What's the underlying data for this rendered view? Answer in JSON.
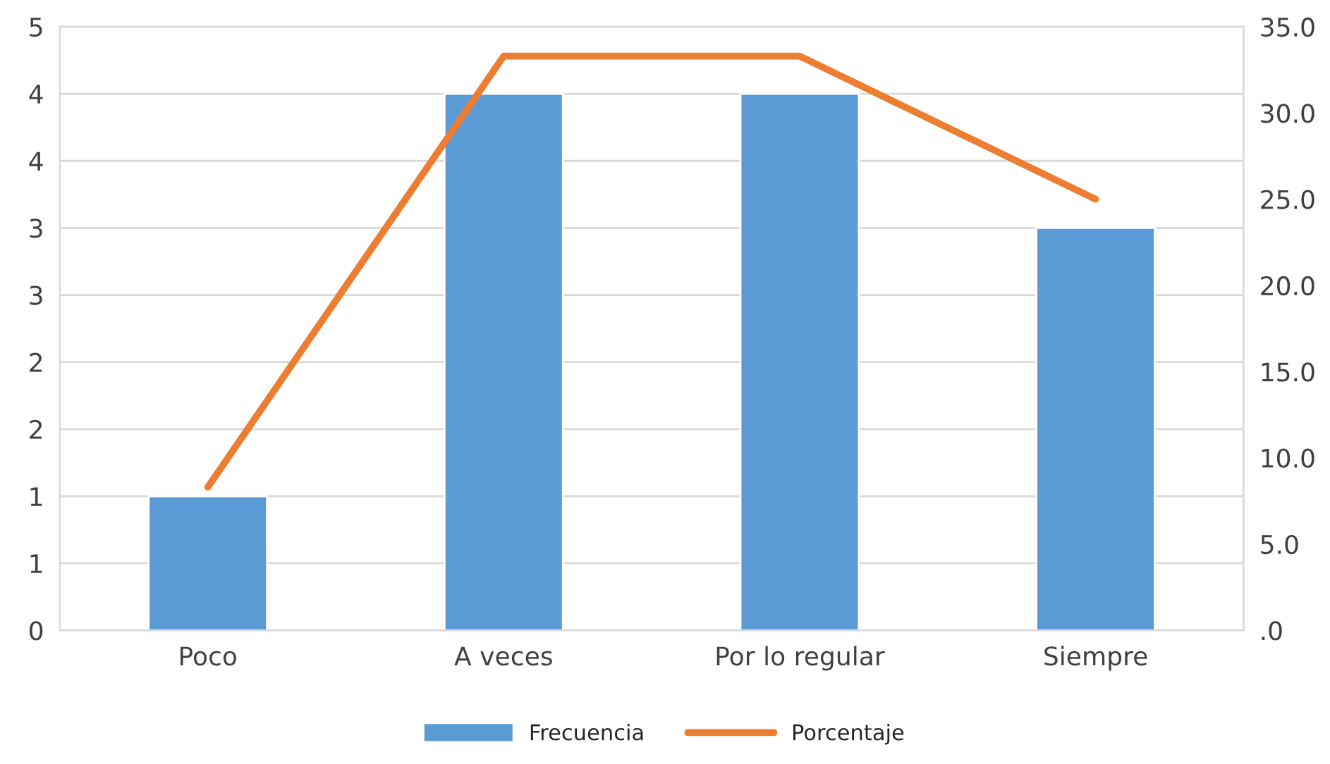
{
  "chart_data": {
    "type": "bar",
    "categories": [
      "Poco",
      "A veces",
      "Por lo regular",
      "Siempre"
    ],
    "series": [
      {
        "name": "Frecuencia",
        "color": "#5b9bd5",
        "values": [
          1,
          4,
          4,
          3
        ]
      },
      {
        "name": "Porcentaje",
        "type": "line",
        "axis": "y2",
        "color": "#ed7d31",
        "values": [
          8.3,
          33.3,
          33.3,
          25.0
        ]
      }
    ],
    "ylim": [
      0,
      4.5
    ],
    "yticks": [
      0,
      {
        "value": 0.5,
        "label": "1"
      },
      1,
      {
        "value": 1.5,
        "label": "2"
      },
      2,
      {
        "value": 2.5,
        "label": "3"
      },
      3,
      {
        "value": 3.5,
        "label": "4"
      },
      4,
      {
        "value": 4.5,
        "label": "5"
      }
    ],
    "y2lim": [
      0,
      35
    ],
    "y2ticks": [
      {
        "value": 0,
        "label": ".0"
      },
      {
        "value": 5,
        "label": "5.0"
      },
      {
        "value": 10,
        "label": "10.0"
      },
      {
        "value": 15,
        "label": "15.0"
      },
      {
        "value": 20,
        "label": "20.0"
      },
      {
        "value": 25,
        "label": "25.0"
      },
      {
        "value": 30,
        "label": "30.0"
      },
      {
        "value": 35,
        "label": "35.0"
      }
    ],
    "grid": "y",
    "legend": "bottom",
    "marker": "none",
    "line_style": "solid"
  }
}
